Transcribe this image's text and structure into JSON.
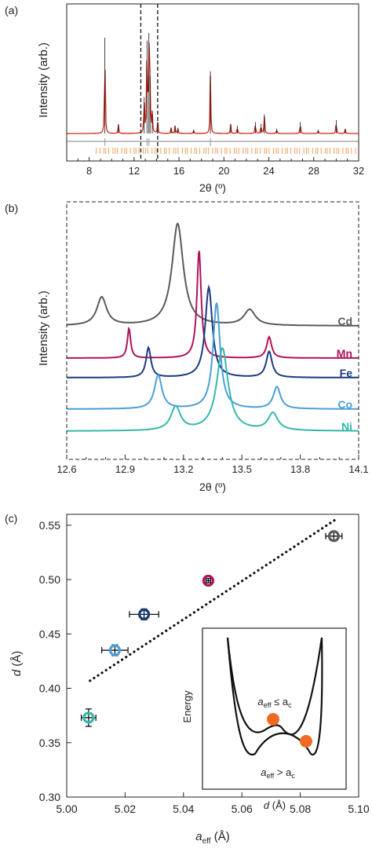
{
  "colors": {
    "red": "#cc2a1e",
    "orange": "#f0a060",
    "grey_trace": "#9a9a9a",
    "Cd": "#5a5a5a",
    "Mn": "#b0135b",
    "Fe": "#1b3a80",
    "Co": "#4a9fd8",
    "Ni": "#35b8aa",
    "ball": "#f06a24"
  },
  "chart_data": [
    {
      "panel": "(a)",
      "type": "line",
      "xlabel": "2θ (º)",
      "ylabel": "Intensity (arb.)",
      "xlim": [
        6,
        32
      ],
      "xticks": [
        8,
        12,
        16,
        20,
        24,
        28,
        32
      ],
      "xtick_labels": [
        "8",
        "12",
        "16",
        "20",
        "24",
        "28",
        "32"
      ],
      "highlight_window": [
        12.6,
        14.1
      ],
      "peaks": [
        {
          "x": 9.4,
          "y": 1.0
        },
        {
          "x": 10.6,
          "y": 0.1
        },
        {
          "x": 12.9,
          "y": 0.38
        },
        {
          "x": 13.15,
          "y": 0.97
        },
        {
          "x": 13.32,
          "y": 1.05
        },
        {
          "x": 13.42,
          "y": 0.6
        },
        {
          "x": 13.62,
          "y": 0.2
        },
        {
          "x": 14.1,
          "y": 0.12
        },
        {
          "x": 15.3,
          "y": 0.06
        },
        {
          "x": 15.65,
          "y": 0.08
        },
        {
          "x": 15.9,
          "y": 0.06
        },
        {
          "x": 17.3,
          "y": 0.04
        },
        {
          "x": 18.8,
          "y": 0.65
        },
        {
          "x": 20.6,
          "y": 0.1
        },
        {
          "x": 21.2,
          "y": 0.08
        },
        {
          "x": 22.8,
          "y": 0.12
        },
        {
          "x": 23.3,
          "y": 0.1
        },
        {
          "x": 23.6,
          "y": 0.2
        },
        {
          "x": 24.7,
          "y": 0.05
        },
        {
          "x": 26.8,
          "y": 0.12
        },
        {
          "x": 28.4,
          "y": 0.04
        },
        {
          "x": 30.0,
          "y": 0.14
        },
        {
          "x": 30.8,
          "y": 0.05
        }
      ]
    },
    {
      "panel": "(b)",
      "type": "line",
      "xlabel": "2θ (º)",
      "ylabel": "Intensity (arb.)",
      "xlim": [
        12.6,
        14.1
      ],
      "xticks": [
        12.6,
        12.9,
        13.2,
        13.5,
        13.8,
        14.1
      ],
      "xtick_labels": [
        "12.6",
        "12.9",
        "13.2",
        "13.5",
        "13.8",
        "14.1"
      ],
      "series": [
        {
          "name": "Cd",
          "peaks": [
            {
              "x": 12.78,
              "h": 0.36,
              "w": 0.03
            },
            {
              "x": 13.17,
              "h": 1.3,
              "w": 0.035
            },
            {
              "x": 13.54,
              "h": 0.2,
              "w": 0.035
            }
          ]
        },
        {
          "name": "Mn",
          "peaks": [
            {
              "x": 12.92,
              "h": 0.38,
              "w": 0.01
            },
            {
              "x": 13.28,
              "h": 1.38,
              "w": 0.013
            },
            {
              "x": 13.64,
              "h": 0.27,
              "w": 0.015
            }
          ]
        },
        {
          "name": "Fe",
          "peaks": [
            {
              "x": 13.02,
              "h": 0.38,
              "w": 0.015
            },
            {
              "x": 13.33,
              "h": 1.15,
              "w": 0.022
            },
            {
              "x": 13.64,
              "h": 0.33,
              "w": 0.018
            }
          ]
        },
        {
          "name": "Co",
          "peaks": [
            {
              "x": 13.07,
              "h": 0.43,
              "w": 0.023
            },
            {
              "x": 13.37,
              "h": 1.35,
              "w": 0.022
            },
            {
              "x": 13.68,
              "h": 0.28,
              "w": 0.022
            }
          ]
        },
        {
          "name": "Ni",
          "peaks": [
            {
              "x": 13.16,
              "h": 0.3,
              "w": 0.03
            },
            {
              "x": 13.4,
              "h": 1.05,
              "w": 0.035
            },
            {
              "x": 13.66,
              "h": 0.22,
              "w": 0.03
            }
          ]
        }
      ]
    },
    {
      "panel": "(c)",
      "type": "scatter",
      "xlabel_main": "a",
      "xlabel_sub": "eff",
      "xlabel_unit": " (Å)",
      "ylabel_main": "d",
      "ylabel_unit": " (Å)",
      "xlim": [
        5.0,
        5.1
      ],
      "ylim": [
        0.3,
        0.56
      ],
      "xticks": [
        5.0,
        5.02,
        5.04,
        5.06,
        5.08,
        5.1
      ],
      "xtick_labels": [
        "5.00",
        "5.02",
        "5.04",
        "5.06",
        "5.08",
        "5.10"
      ],
      "yticks": [
        0.3,
        0.35,
        0.4,
        0.45,
        0.5,
        0.55
      ],
      "ytick_labels": [
        "0.30",
        "0.35",
        "0.40",
        "0.45",
        "0.50",
        "0.55"
      ],
      "points": [
        {
          "name": "Ni",
          "x": 5.0075,
          "y": 0.373,
          "xerr": 0.0025,
          "yerr": 0.008
        },
        {
          "name": "Co",
          "x": 5.0165,
          "y": 0.435,
          "xerr": 0.0045,
          "yerr": 0.005
        },
        {
          "name": "Fe",
          "x": 5.0265,
          "y": 0.468,
          "xerr": 0.005,
          "yerr": 0.005
        },
        {
          "name": "Mn",
          "x": 5.0485,
          "y": 0.499,
          "xerr": 0.0008,
          "yerr": 0.002
        },
        {
          "name": "Cd",
          "x": 5.0915,
          "y": 0.54,
          "xerr": 0.0028,
          "yerr": 0.004
        }
      ],
      "trend_line": [
        {
          "x": 5.008,
          "y": 0.407
        },
        {
          "x": 5.092,
          "y": 0.555
        }
      ],
      "inset": {
        "ylabel": "Energy",
        "xlabel_main": "d",
        "xlabel_unit": " (Å)",
        "label_upper": {
          "main": "a",
          "sub1": "eff",
          "rel": " ≤ a",
          "sub2": "c"
        },
        "label_lower": {
          "main": "a",
          "sub1": "eff",
          "rel": " > a",
          "sub2": "c"
        }
      }
    }
  ]
}
